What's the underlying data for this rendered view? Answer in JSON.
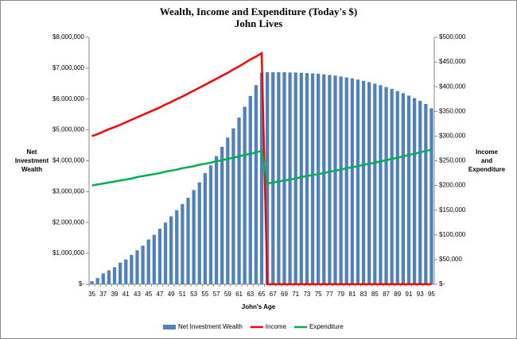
{
  "chart_data": {
    "type": "bar",
    "title": "Wealth, Income and Expenditure (Today's $)",
    "subtitle": "John Lives",
    "y_label": "Net Investment Wealth",
    "y2_label": "Income and Expenditure",
    "x_label": "John's Age",
    "categories": [
      "35",
      null,
      "37",
      null,
      "39",
      null,
      "41",
      null,
      "43",
      null,
      "45",
      null,
      "47",
      null,
      "49",
      null,
      "51",
      null,
      "53",
      null,
      "55",
      null,
      "57",
      null,
      "59",
      null,
      "61",
      null,
      "63",
      null,
      "65",
      null,
      "67",
      null,
      "69",
      null,
      "71",
      null,
      "73",
      null,
      "75",
      null,
      "77",
      null,
      "79",
      null,
      "81",
      null,
      "83",
      null,
      "85",
      null,
      "87",
      null,
      "89",
      null,
      "91",
      null,
      "93",
      null,
      "95"
    ],
    "series": [
      {
        "name": "Net Investment Wealth",
        "type": "bar",
        "color": "#4f81bd",
        "values": [
          100000,
          200000,
          350000,
          450000,
          550000,
          700000,
          800000,
          950000,
          1100000,
          1250000,
          1450000,
          1600000,
          1800000,
          2000000,
          2200000,
          2400000,
          2600000,
          2800000,
          3050000,
          3300000,
          3600000,
          3850000,
          4150000,
          4450000,
          4750000,
          5050000,
          5400000,
          5750000,
          6100000,
          6450000,
          6850000,
          6870000,
          6870000,
          6870000,
          6870000,
          6860000,
          6860000,
          6850000,
          6840000,
          6830000,
          6820000,
          6800000,
          6780000,
          6760000,
          6730000,
          6700000,
          6670000,
          6630000,
          6590000,
          6550000,
          6500000,
          6450000,
          6390000,
          6330000,
          6260000,
          6190000,
          6110000,
          6030000,
          5940000,
          5840000,
          5700000
        ]
      },
      {
        "name": "Income",
        "type": "line",
        "axis": "y2",
        "color": "#ff0000",
        "values": [
          300000,
          304000,
          309000,
          314000,
          318000,
          323000,
          328000,
          333000,
          338000,
          343000,
          348000,
          353000,
          358000,
          364000,
          369000,
          375000,
          380000,
          386000,
          392000,
          398000,
          404000,
          410000,
          416000,
          422000,
          428000,
          435000,
          441000,
          448000,
          455000,
          461000,
          468000,
          0,
          0,
          0,
          0,
          0,
          0,
          0,
          0,
          0,
          0,
          0,
          0,
          0,
          0,
          0,
          0,
          0,
          0,
          0,
          0,
          0,
          0,
          0,
          0,
          0,
          0,
          0,
          0,
          0,
          0
        ]
      },
      {
        "name": "Expenditure",
        "type": "line",
        "axis": "y2",
        "color": "#00b050",
        "values": [
          200000,
          202000,
          204000,
          206000,
          208000,
          210000,
          212000,
          214000,
          217000,
          219000,
          221000,
          223000,
          225000,
          228000,
          230000,
          232000,
          235000,
          237000,
          239000,
          242000,
          244000,
          246000,
          249000,
          251000,
          254000,
          256000,
          259000,
          262000,
          264000,
          267000,
          270000,
          204000,
          206000,
          208000,
          210000,
          212000,
          214000,
          217000,
          219000,
          221000,
          223000,
          225000,
          228000,
          230000,
          232000,
          235000,
          237000,
          239000,
          242000,
          244000,
          246000,
          249000,
          251000,
          254000,
          256000,
          259000,
          262000,
          264000,
          267000,
          270000,
          272000
        ]
      }
    ],
    "ylim": [
      0,
      8000000
    ],
    "yticks": [
      {
        "value": 0,
        "label": "$-"
      },
      {
        "value": 1000000,
        "label": "$1,000,000"
      },
      {
        "value": 2000000,
        "label": "$2,000,000"
      },
      {
        "value": 3000000,
        "label": "$3,000,000"
      },
      {
        "value": 4000000,
        "label": "$4,000,000"
      },
      {
        "value": 5000000,
        "label": "$5,000,000"
      },
      {
        "value": 6000000,
        "label": "$6,000,000"
      },
      {
        "value": 7000000,
        "label": "$7,000,000"
      },
      {
        "value": 8000000,
        "label": "$8,000,000"
      }
    ],
    "y2lim": [
      0,
      500000
    ],
    "y2ticks": [
      {
        "value": 0,
        "label": "$-"
      },
      {
        "value": 50000,
        "label": "$50,000"
      },
      {
        "value": 100000,
        "label": "$100,000"
      },
      {
        "value": 150000,
        "label": "$150,000"
      },
      {
        "value": 200000,
        "label": "$200,000"
      },
      {
        "value": 250000,
        "label": "$250,000"
      },
      {
        "value": 300000,
        "label": "$300,000"
      },
      {
        "value": 350000,
        "label": "$350,000"
      },
      {
        "value": 400000,
        "label": "$400,000"
      },
      {
        "value": 450000,
        "label": "$450,000"
      },
      {
        "value": 500000,
        "label": "$500,000"
      }
    ],
    "legend": "bottom"
  }
}
